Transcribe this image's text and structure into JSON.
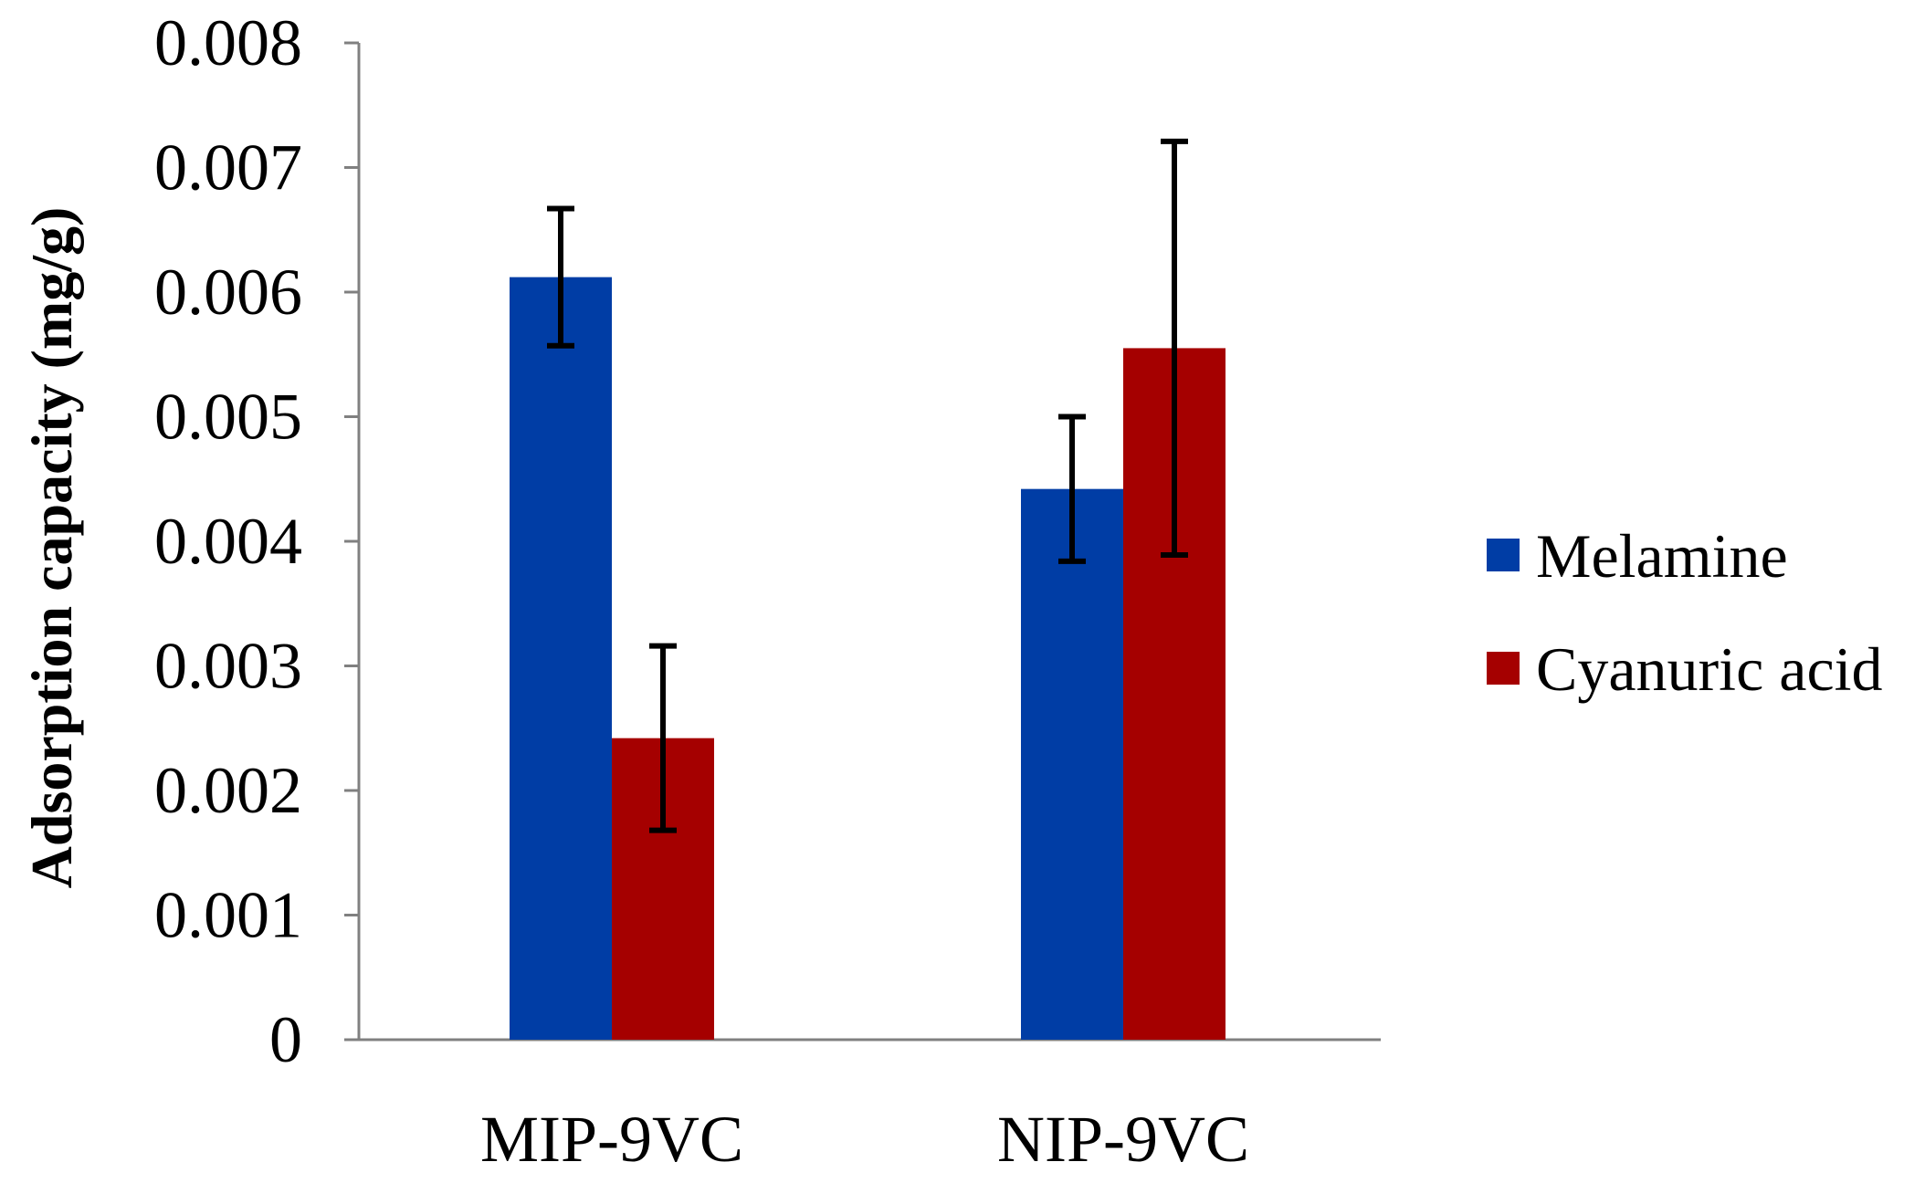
{
  "chart_data": {
    "type": "bar",
    "title": "",
    "xlabel": "",
    "ylabel": "Adsorption capacity (mg/g)",
    "ylim": [
      0,
      0.008
    ],
    "yticks": [
      "0",
      "0.001",
      "0.002",
      "0.003",
      "0.004",
      "0.005",
      "0.006",
      "0.007",
      "0.008"
    ],
    "ytick_values": [
      0,
      0.001,
      0.002,
      0.003,
      0.004,
      0.005,
      0.006,
      0.007,
      0.008
    ],
    "categories": [
      "MIP-9VC",
      "NIP-9VC"
    ],
    "series": [
      {
        "name": "Melamine",
        "color": "#003DA5",
        "values": [
          0.00612,
          0.00442
        ],
        "error": [
          0.00055,
          0.00058
        ]
      },
      {
        "name": "Cyanuric acid",
        "color": "#A50000",
        "values": [
          0.00242,
          0.00555
        ],
        "error": [
          0.00074,
          0.00166
        ]
      }
    ],
    "legend_position": "right",
    "grid": false
  }
}
